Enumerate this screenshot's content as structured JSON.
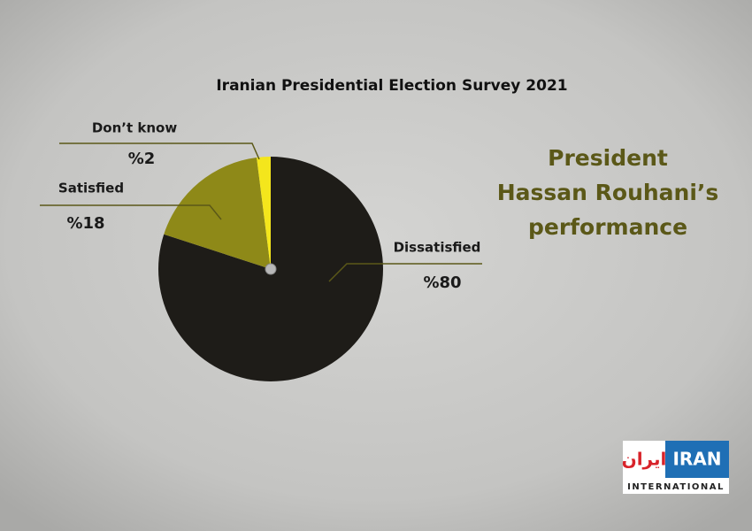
{
  "chart_data": {
    "type": "pie",
    "title": "Iranian Presidential Election Survey 2021",
    "subtitle": [
      "President",
      "Hassan Rouhani’s",
      "performance"
    ],
    "categories": [
      "Dissatisfied",
      "Satisfied",
      "Don’t know"
    ],
    "values": [
      80,
      18,
      2
    ],
    "value_labels": [
      "%80",
      "%18",
      "%2"
    ],
    "colors": [
      "#1e1c18",
      "#8e8918",
      "#f4e61c"
    ]
  },
  "logo": {
    "persian": "ايران",
    "latin": "IRAN",
    "sub": "INTERNATIONAL"
  }
}
